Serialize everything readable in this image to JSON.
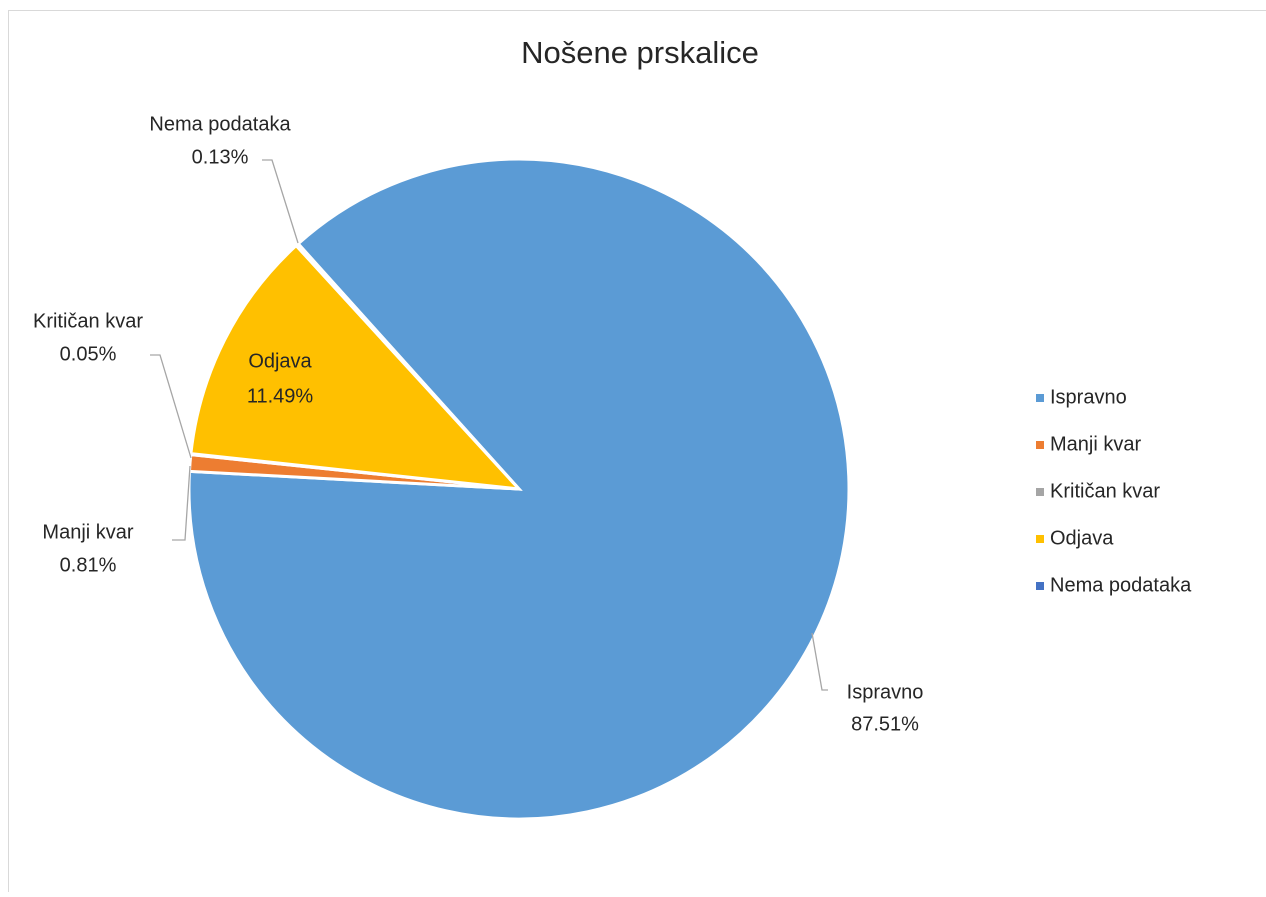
{
  "chart_data": {
    "type": "pie",
    "title": "Nošene prskalice",
    "categories": [
      "Ispravno",
      "Manji kvar",
      "Kritičan kvar",
      "Odjava",
      "Nema podataka"
    ],
    "values": [
      87.51,
      0.81,
      0.05,
      11.49,
      0.13
    ],
    "value_labels": [
      "87.51%",
      "0.81%",
      "0.05%",
      "11.49%",
      "0.13%"
    ],
    "colors": [
      "#5b9bd5",
      "#ed7d31",
      "#a5a5a5",
      "#ffc000",
      "#4472c4"
    ],
    "legend": "right"
  }
}
